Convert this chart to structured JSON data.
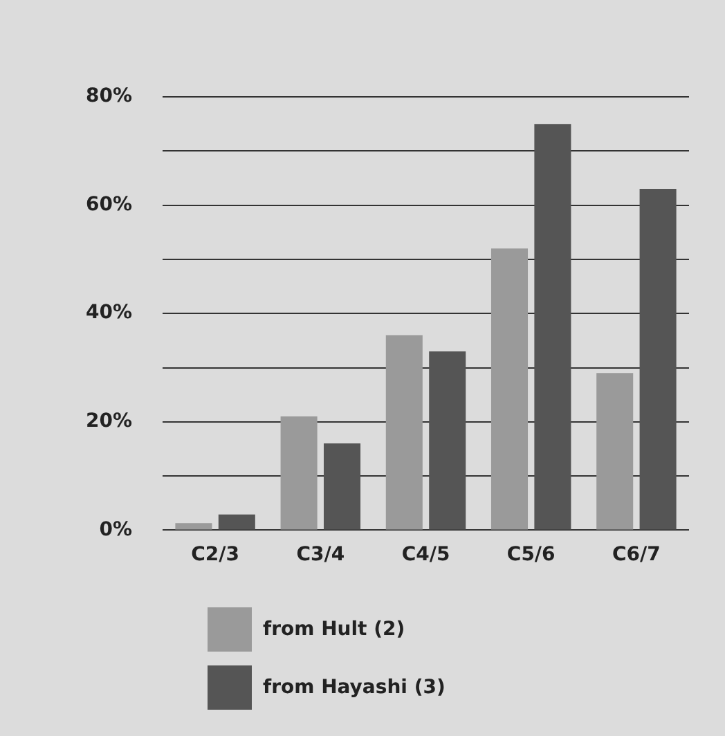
{
  "chart_data": {
    "type": "bar",
    "categories": [
      "C2/3",
      "C3/4",
      "C4/5",
      "C5/6",
      "C6/7"
    ],
    "series": [
      {
        "name": "from Hult (2)",
        "color": "#9a9a9a",
        "values": [
          1.3,
          21,
          36,
          52,
          29
        ]
      },
      {
        "name": "from Hayashi (3)",
        "color": "#555555",
        "values": [
          2.9,
          16,
          33,
          75,
          63
        ]
      }
    ],
    "ylim": [
      0,
      80
    ],
    "yticks": [
      {
        "value": 0,
        "label": "0%"
      },
      {
        "value": 10,
        "label": null
      },
      {
        "value": 20,
        "label": "20%"
      },
      {
        "value": 30,
        "label": null
      },
      {
        "value": 40,
        "label": "40%"
      },
      {
        "value": 50,
        "label": null
      },
      {
        "value": 60,
        "label": "60%"
      },
      {
        "value": 70,
        "label": null
      },
      {
        "value": 80,
        "label": "80%"
      }
    ],
    "grid": "y",
    "legend": "bottom left"
  }
}
